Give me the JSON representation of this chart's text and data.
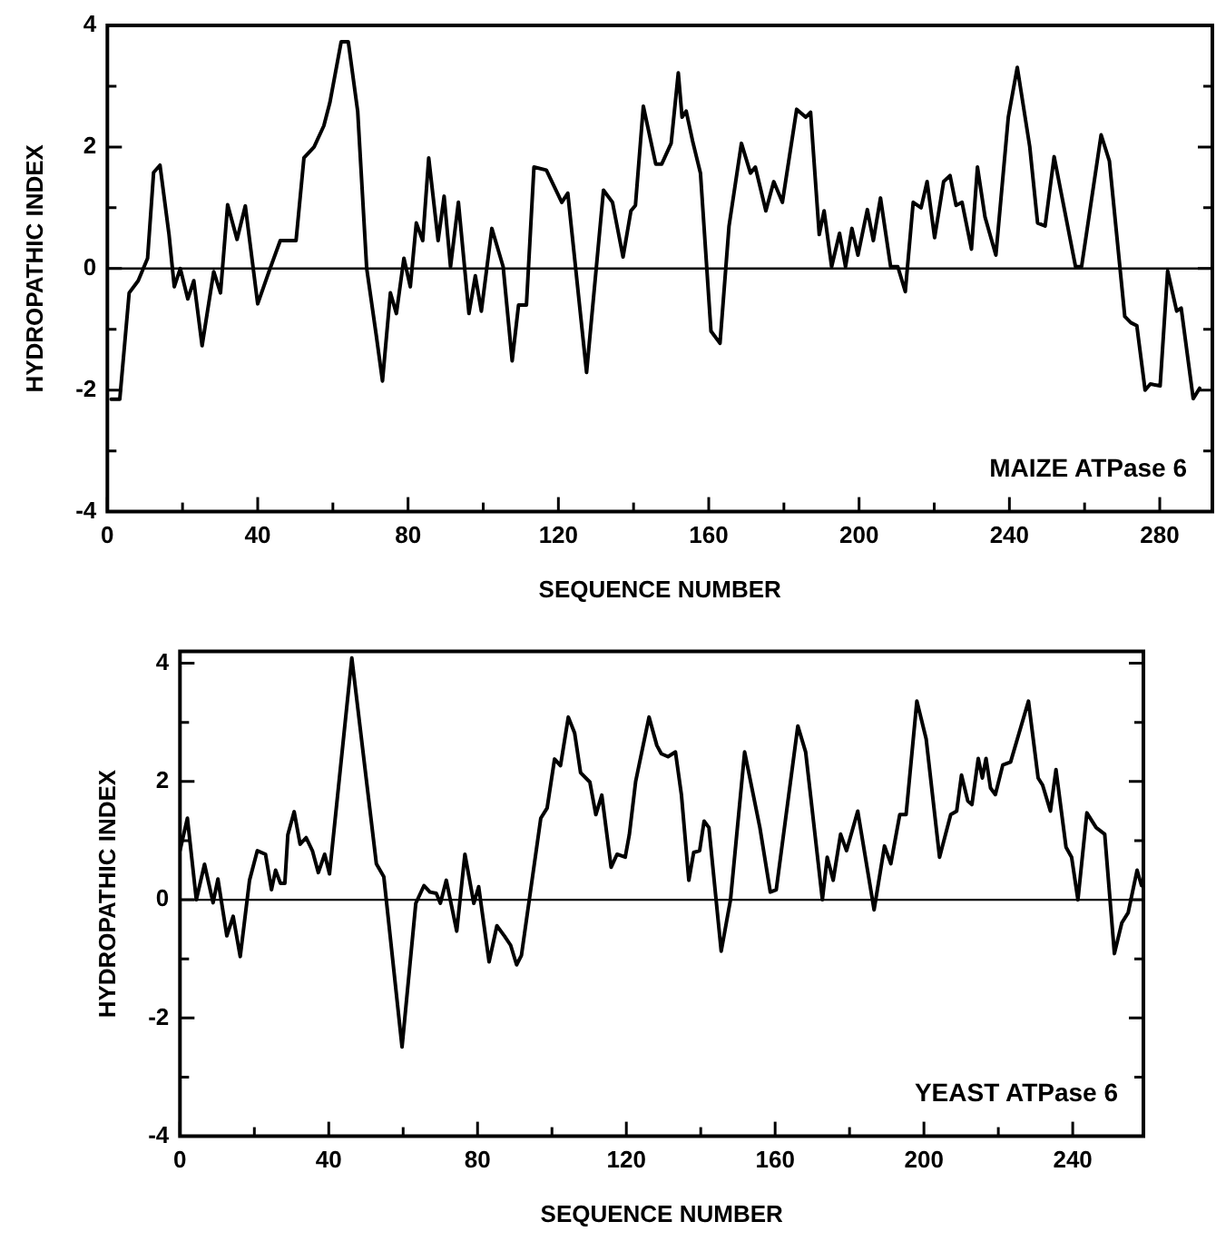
{
  "chart_data": [
    {
      "type": "line",
      "xlabel": "SEQUENCE NUMBER",
      "ylabel": "HYDROPATHIC INDEX",
      "annotations": [
        "MAIZE ATPase 6"
      ],
      "xlim": [
        0,
        294
      ],
      "ylim": [
        -4,
        4
      ],
      "xticks": [
        0,
        {
          "value": 20,
          "label": null
        },
        40,
        {
          "value": 60,
          "label": null
        },
        80,
        {
          "value": 100,
          "label": null
        },
        120,
        {
          "value": 140,
          "label": null
        },
        160,
        {
          "value": 180,
          "label": null
        },
        200,
        {
          "value": 220,
          "label": null
        },
        240,
        {
          "value": 260,
          "label": null
        },
        280
      ],
      "yticks": [
        -4,
        {
          "value": -3,
          "label": null
        },
        -2,
        {
          "value": -1,
          "label": null
        },
        0,
        {
          "value": 1,
          "label": null
        },
        2,
        {
          "value": 3,
          "label": null
        },
        4
      ],
      "ref_lines": [
        {
          "axis": "y",
          "value": 0
        }
      ],
      "grid": false,
      "legend": false,
      "marker": "none",
      "line_style": "solid",
      "series": [
        {
          "color": "#000000",
          "x": [
            1,
            3.3,
            5.8,
            8.2,
            10.7,
            12.3,
            14,
            16.4,
            17.8,
            19.4,
            21.4,
            23,
            25.2,
            28.3,
            30.1,
            32,
            34.5,
            36.7,
            40,
            43,
            46,
            50.2,
            52.3,
            55,
            57.6,
            59.2,
            62.2,
            64.1,
            66.6,
            69,
            71.5,
            73.2,
            75.3,
            76.9,
            78.9,
            80.6,
            82.2,
            83.9,
            85.5,
            88,
            89.6,
            91.3,
            93.4,
            96.2,
            97.9,
            99.5,
            102.3,
            105.3,
            107.7,
            109.4,
            111.5,
            113.5,
            116.8,
            120.9,
            122.5,
            127.5,
            132,
            134.4,
            137.2,
            139.3,
            140.5,
            142.6,
            145.9,
            147.5,
            150,
            151.9,
            152.9,
            154,
            155.7,
            157.8,
            160.6,
            163,
            165.4,
            168.7,
            171.1,
            172.4,
            175.2,
            177.3,
            179.6,
            183.4,
            185.8,
            187.1,
            189.4,
            190.7,
            192.7,
            194.8,
            196.4,
            198.1,
            199.7,
            202.2,
            203.8,
            205.7,
            208.4,
            210.3,
            212.3,
            214.4,
            216.5,
            218.1,
            220.1,
            222.5,
            224.2,
            225.8,
            227.4,
            229.9,
            231.5,
            233.5,
            236.4,
            239.7,
            242.1,
            245.4,
            247.5,
            249.5,
            251.9,
            257.6,
            259.2,
            264.4,
            266.6,
            270.7,
            272.3,
            273.9,
            276.1,
            277.5,
            280.1,
            282.1,
            284.5,
            285.7,
            288.9,
            290.6
          ],
          "values": [
            -2.15,
            -2.15,
            -0.4,
            -0.2,
            0.17,
            1.58,
            1.7,
            0.56,
            -0.3,
            0,
            -0.5,
            -0.2,
            -1.27,
            -0.05,
            -0.4,
            1.05,
            0.48,
            1.03,
            -0.58,
            -0.05,
            0.46,
            0.46,
            1.82,
            2,
            2.35,
            2.73,
            3.73,
            3.73,
            2.59,
            0,
            -1.08,
            -1.85,
            -0.4,
            -0.74,
            0.17,
            -0.3,
            0.75,
            0.46,
            1.82,
            0.46,
            1.19,
            0.03,
            1.09,
            -0.74,
            -0.12,
            -0.7,
            0.66,
            0.03,
            -1.52,
            -0.6,
            -0.6,
            1.67,
            1.62,
            1.09,
            1.24,
            -1.71,
            1.29,
            1.09,
            0.19,
            0.95,
            1.04,
            2.67,
            1.72,
            1.72,
            2.06,
            3.22,
            2.49,
            2.59,
            2.1,
            1.57,
            -1.03,
            -1.23,
            0.7,
            2.06,
            1.57,
            1.67,
            0.95,
            1.43,
            1.09,
            2.62,
            2.49,
            2.57,
            0.56,
            0.95,
            0.03,
            0.58,
            0.03,
            0.66,
            0.22,
            0.97,
            0.46,
            1.16,
            0.03,
            0.03,
            -0.38,
            1.09,
            1,
            1.43,
            0.51,
            1.43,
            1.53,
            1.04,
            1.09,
            0.32,
            1.67,
            0.85,
            0.22,
            2.49,
            3.31,
            2.01,
            0.75,
            0.7,
            1.84,
            0.03,
            0.03,
            2.2,
            1.77,
            -0.79,
            -0.89,
            -0.94,
            -2,
            -1.9,
            -1.93,
            -0.04,
            -0.7,
            -0.65,
            -2.14,
            -1.97
          ]
        }
      ]
    },
    {
      "type": "line",
      "xlabel": "SEQUENCE NUMBER",
      "ylabel": "HYDROPATHIC INDEX",
      "annotations": [
        "YEAST ATPase 6"
      ],
      "xlim": [
        0,
        259
      ],
      "ylim": [
        -4,
        4.2
      ],
      "xticks": [
        0,
        {
          "value": 20,
          "label": null
        },
        40,
        {
          "value": 60,
          "label": null
        },
        80,
        {
          "value": 100,
          "label": null
        },
        120,
        {
          "value": 140,
          "label": null
        },
        160,
        {
          "value": 180,
          "label": null
        },
        200,
        {
          "value": 220,
          "label": null
        },
        240
      ],
      "yticks": [
        -4,
        {
          "value": -3,
          "label": null
        },
        -2,
        {
          "value": -1,
          "label": null
        },
        0,
        {
          "value": 1,
          "label": null
        },
        2,
        {
          "value": 3,
          "label": null
        },
        4
      ],
      "ref_lines": [
        {
          "axis": "y",
          "value": 0
        }
      ],
      "grid": false,
      "legend": false,
      "marker": "none",
      "line_style": "solid",
      "series": [
        {
          "color": "#000000",
          "x": [
            0,
            2,
            4.4,
            6.6,
            8.9,
            10.2,
            12.6,
            14.3,
            16.2,
            18.7,
            20.8,
            23,
            24.6,
            25.7,
            27,
            28.2,
            29,
            30.7,
            32.3,
            33.9,
            35.6,
            37.2,
            38.9,
            40.2,
            46.2,
            52.8,
            54.8,
            59.7,
            63.4,
            65.6,
            67.2,
            68.9,
            70,
            71.6,
            74.4,
            76.6,
            79,
            80.3,
            83.1,
            85.2,
            87.2,
            88.9,
            90.5,
            91.8,
            97,
            98.7,
            100.7,
            102.3,
            104.4,
            106.1,
            107.7,
            110.2,
            111.8,
            113.4,
            115.9,
            117.5,
            119.7,
            120.8,
            122.5,
            126.1,
            128.2,
            129.4,
            131.2,
            133.2,
            134.8,
            136.8,
            138.1,
            139.7,
            140.9,
            142.2,
            145.5,
            148,
            151.8,
            155.9,
            158.7,
            160.3,
            166.1,
            168.2,
            172.7,
            174,
            175.6,
            177.6,
            179.2,
            182.2,
            186.6,
            189.4,
            191.1,
            193.5,
            195.2,
            198.1,
            200.6,
            204.2,
            207.2,
            208.8,
            210.1,
            211.8,
            212.9,
            214.6,
            215.7,
            216.7,
            217.9,
            219.2,
            221.2,
            223.3,
            228.1,
            230.7,
            231.9,
            234,
            235.5,
            238.2,
            239.7,
            241.4,
            243.8,
            246.3,
            248.6,
            251.2,
            253.2,
            254.9,
            257.3,
            258.5
          ],
          "values": [
            0.83,
            1.38,
            0,
            0.6,
            -0.05,
            0.35,
            -0.61,
            -0.28,
            -0.96,
            0.33,
            0.83,
            0.77,
            0.17,
            0.5,
            0.28,
            0.28,
            1.1,
            1.49,
            0.94,
            1.05,
            0.83,
            0.46,
            0.77,
            0.44,
            4.09,
            0.61,
            0.39,
            -2.49,
            -0.06,
            0.24,
            0.13,
            0.11,
            -0.06,
            0.33,
            -0.53,
            0.77,
            -0.06,
            0.22,
            -1.05,
            -0.44,
            -0.61,
            -0.77,
            -1.1,
            -0.94,
            1.38,
            1.55,
            2.38,
            2.27,
            3.09,
            2.82,
            2.15,
            1.99,
            1.44,
            1.77,
            0.55,
            0.77,
            0.72,
            1.1,
            2,
            3.09,
            2.61,
            2.47,
            2.42,
            2.5,
            1.78,
            0.33,
            0.8,
            0.83,
            1.33,
            1.22,
            -0.87,
            0,
            2.5,
            1.22,
            0.13,
            0.17,
            2.94,
            2.5,
            0,
            0.72,
            0.33,
            1.11,
            0.83,
            1.5,
            -0.17,
            0.91,
            0.61,
            1.44,
            1.44,
            3.36,
            2.72,
            0.72,
            1.44,
            1.5,
            2.11,
            1.67,
            1.61,
            2.39,
            2.06,
            2.39,
            1.89,
            1.78,
            2.28,
            2.33,
            3.36,
            2.06,
            1.94,
            1.5,
            2.2,
            0.89,
            0.72,
            0,
            1.47,
            1.22,
            1.11,
            -0.91,
            -0.39,
            -0.22,
            0.5,
            0.24
          ]
        }
      ]
    }
  ]
}
